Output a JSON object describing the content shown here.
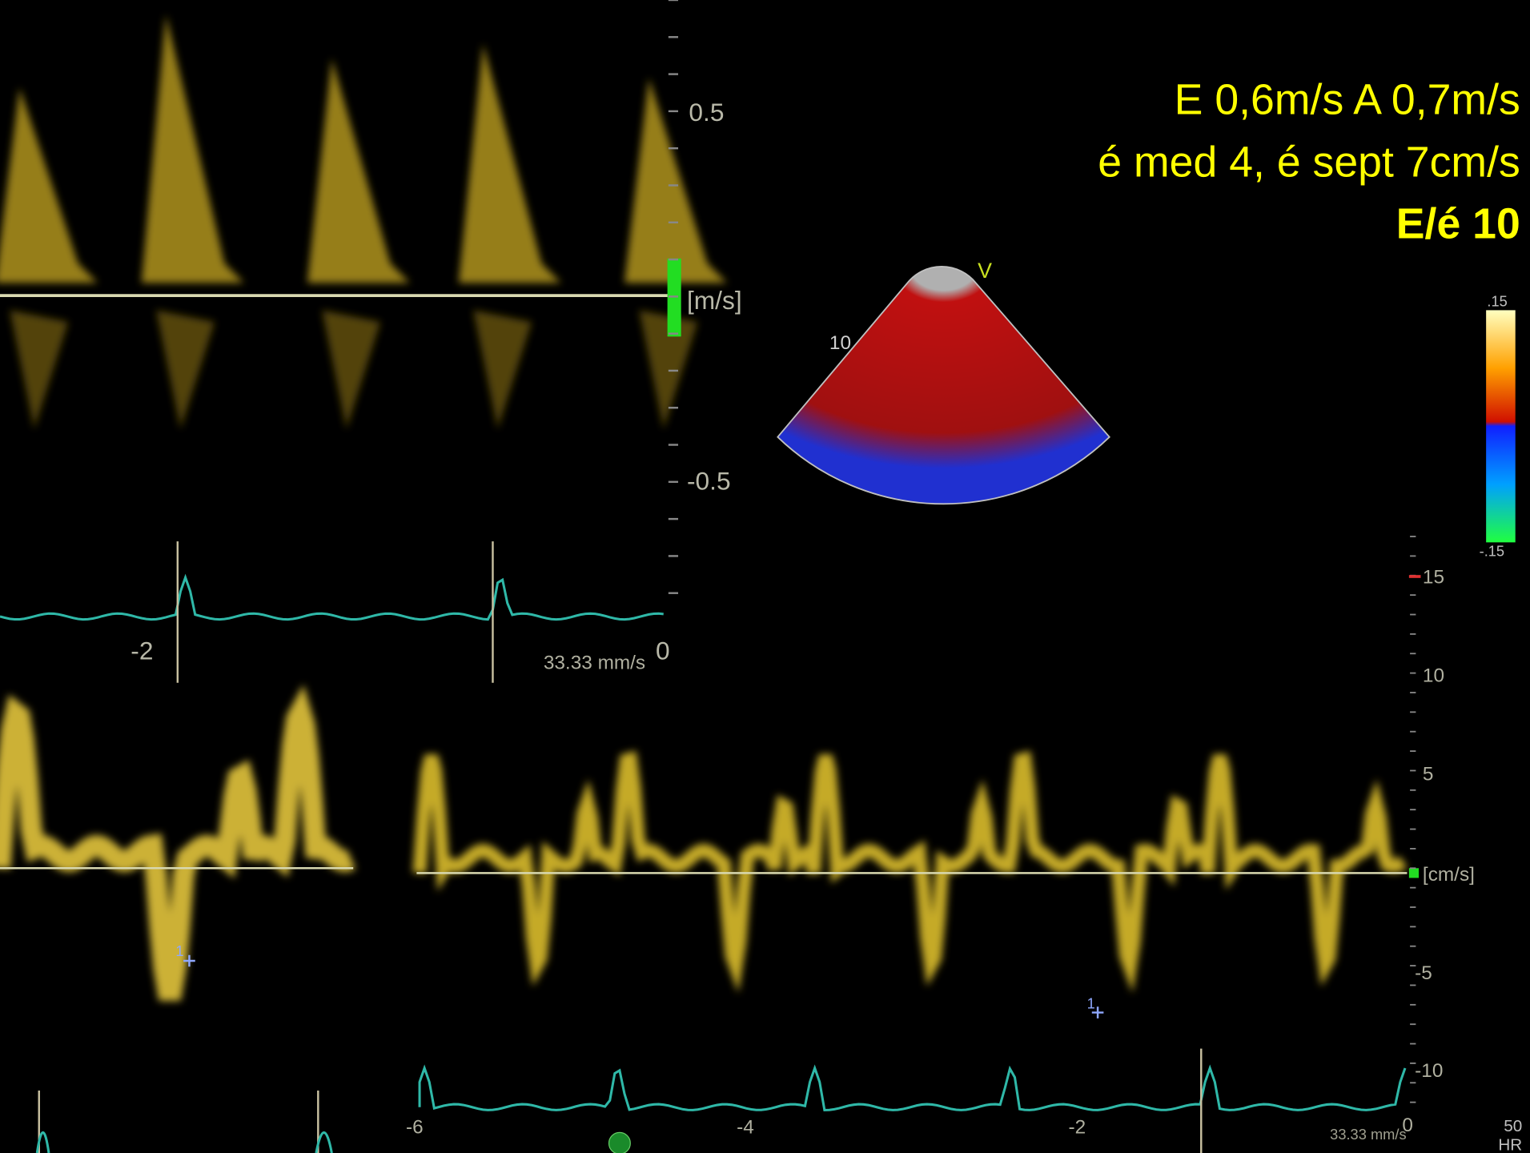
{
  "annotation": {
    "lines": [
      "E 0,6m/s A 0,7m/s",
      "é med 4, é sept 7cm/s",
      "E/é 10"
    ]
  },
  "top_doppler": {
    "scale_labels": [
      "0.5",
      "-0.5"
    ],
    "unit": "[m/s]",
    "time_labels": [
      "-2",
      "0"
    ],
    "sweep": "33.33 mm/s"
  },
  "sector": {
    "label": "V",
    "depth": "10"
  },
  "color_bar": {
    "max": ".15",
    "min": "-.15"
  },
  "bottom_doppler": {
    "scale_labels": [
      "15",
      "10",
      "5",
      "-5",
      "-10"
    ],
    "unit": "[cm/s]",
    "time_labels": [
      "-6",
      "-4",
      "-2",
      "0"
    ],
    "sweep": "33.33 mm/s",
    "hr_value": "50",
    "hr_label": "HR"
  },
  "markers": [
    "1",
    "1"
  ]
}
